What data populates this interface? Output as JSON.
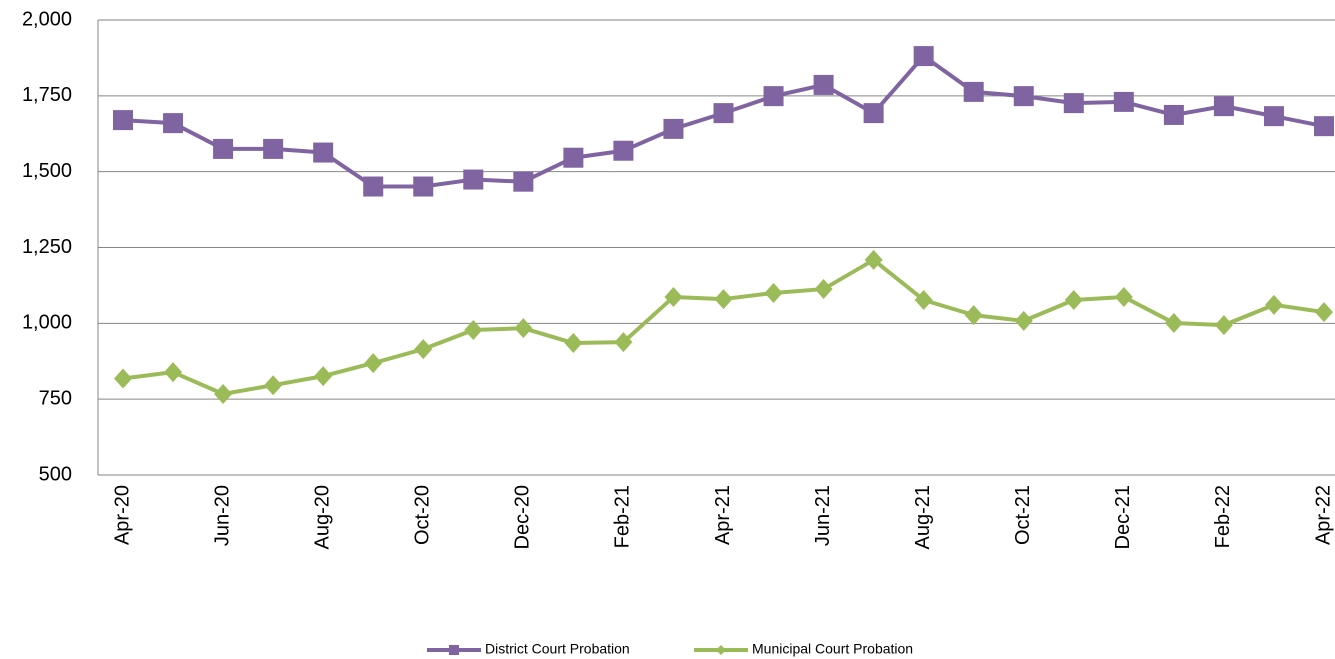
{
  "chart_data": {
    "type": "line",
    "categories": [
      "Apr-20",
      null,
      "Jun-20",
      null,
      "Aug-20",
      null,
      "Oct-20",
      null,
      "Dec-20",
      null,
      "Feb-21",
      null,
      "Apr-21",
      null,
      "Jun-21",
      null,
      "Aug-21",
      null,
      "Oct-21",
      null,
      "Dec-21",
      null,
      "Feb-22",
      null,
      "Apr-22"
    ],
    "series": [
      {
        "name": "District Court Probation",
        "color": "#8064a2",
        "marker": "square",
        "values": [
          1670,
          1660,
          1575,
          1575,
          1563,
          1451,
          1451,
          1474,
          1467,
          1546,
          1569,
          1641,
          1693,
          1749,
          1786,
          1693,
          1881,
          1763,
          1749,
          1726,
          1730,
          1687,
          1716,
          1683,
          1650
        ]
      },
      {
        "name": "Municipal Court Probation",
        "color": "#9bbb59",
        "marker": "diamond",
        "values": [
          818,
          839,
          767,
          796,
          826,
          869,
          915,
          978,
          984,
          935,
          938,
          1087,
          1080,
          1100,
          1113,
          1209,
          1077,
          1027,
          1008,
          1077,
          1087,
          1001,
          994,
          1061,
          1037
        ]
      }
    ],
    "ylim": [
      500,
      2000
    ],
    "yticks": [
      500,
      750,
      {
        "value": 1000,
        "label": "1,000"
      },
      {
        "value": 1250,
        "label": "1,250"
      },
      {
        "value": 1500,
        "label": "1,500"
      },
      {
        "value": 1750,
        "label": "1,750"
      },
      {
        "value": 2000,
        "label": "2,000"
      }
    ],
    "grid": true,
    "legend": "bottom"
  }
}
